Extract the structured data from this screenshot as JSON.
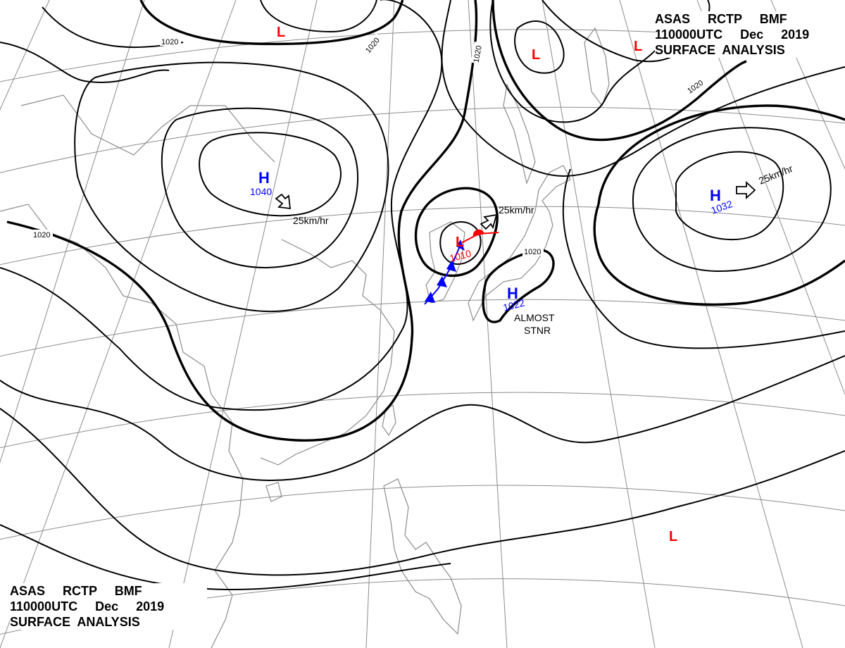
{
  "header_top": {
    "line1": "ASAS     RCTP     BMF",
    "line2": "110000UTC     Dec     2019",
    "line3": "SURFACE  ANALYSIS"
  },
  "header_bottom": {
    "line1": "ASAS     RCTP     BMF",
    "line2": "110000UTC     Dec     2019",
    "line3": "SURFACE  ANALYSIS"
  },
  "isobar_labels": [
    "1020",
    "1020",
    "1020",
    "1020",
    "1020",
    "1020"
  ],
  "highs": [
    {
      "symbol": "H",
      "pressure": "1040"
    },
    {
      "symbol": "H",
      "pressure": "1032"
    },
    {
      "symbol": "H",
      "pressure": "1022"
    }
  ],
  "lows": [
    {
      "symbol": "L",
      "pressure": "1010"
    },
    {
      "symbol": "L"
    },
    {
      "symbol": "L"
    },
    {
      "symbol": "L"
    },
    {
      "symbol": "L"
    }
  ],
  "motion_labels": [
    "25km/hr",
    "25km/hr",
    "25km/hr"
  ],
  "stationary_note": {
    "line1": "ALMOST",
    "line2": "STNR"
  },
  "colors": {
    "high": "#0000ff",
    "low": "#ff0000",
    "isobar": "#000000",
    "grid": "#8c8c8c",
    "cold_front": "#0000ff",
    "warm_front": "#ff0000"
  },
  "icons": {
    "motion_arrow": "hollow-arrow-icon",
    "cold_front": "cold-front-icon",
    "warm_front": "warm-front-icon"
  }
}
